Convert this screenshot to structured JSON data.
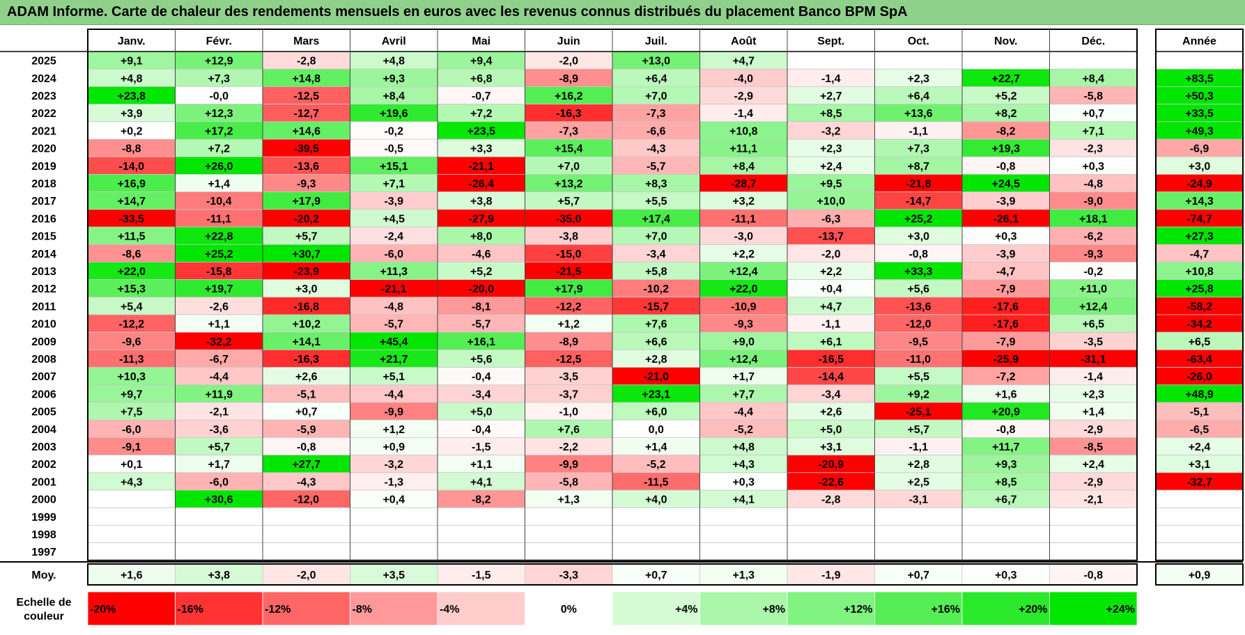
{
  "title": "ADAM Informe. Carte de chaleur des rendements mensuels en euros avec les revenus connus distribués du placement Banco BPM SpA",
  "chart_data": {
    "type": "heatmap",
    "title": "ADAM Informe. Carte de chaleur des rendements mensuels en euros avec les revenus connus distribués du placement Banco BPM SpA",
    "columns": [
      "Janv.",
      "Févr.",
      "Mars",
      "Avril",
      "Mai",
      "Juin",
      "Juil.",
      "Août",
      "Sept.",
      "Oct.",
      "Nov.",
      "Déc."
    ],
    "year_column_label": "Année",
    "years": [
      "2025",
      "2024",
      "2023",
      "2022",
      "2021",
      "2020",
      "2019",
      "2018",
      "2017",
      "2016",
      "2015",
      "2014",
      "2013",
      "2012",
      "2011",
      "2010",
      "2009",
      "2008",
      "2007",
      "2006",
      "2005",
      "2004",
      "2003",
      "2002",
      "2001",
      "2000",
      "1999",
      "1998",
      "1997"
    ],
    "values": [
      [
        "+9,1",
        "+12,9",
        "-2,8",
        "+4,8",
        "+9,4",
        "-2,0",
        "+13,0",
        "+4,7",
        "",
        "",
        "",
        ""
      ],
      [
        "+4,8",
        "+7,3",
        "+14,8",
        "+9,3",
        "+6,8",
        "-8,9",
        "+6,4",
        "-4,0",
        "-1,4",
        "+2,3",
        "+22,7",
        "+8,4"
      ],
      [
        "+23,8",
        "-0,0",
        "-12,5",
        "+8,4",
        "-0,7",
        "+16,2",
        "+7,0",
        "-2,9",
        "+2,7",
        "+6,4",
        "+5,2",
        "-5,8"
      ],
      [
        "+3,9",
        "+12,3",
        "-12,7",
        "+19,6",
        "+7,2",
        "-16,3",
        "-7,3",
        "-1,4",
        "+8,5",
        "+13,6",
        "+8,2",
        "+0,7"
      ],
      [
        "+0,2",
        "+17,2",
        "+14,6",
        "-0,2",
        "+23,5",
        "-7,3",
        "-6,6",
        "+10,8",
        "-3,2",
        "-1,1",
        "-8,2",
        "+7,1"
      ],
      [
        "-8,8",
        "+7,2",
        "-39,5",
        "-0,5",
        "+3,3",
        "+15,4",
        "-4,3",
        "+11,1",
        "+2,3",
        "+7,3",
        "+19,3",
        "-2,3"
      ],
      [
        "-14,0",
        "+26,0",
        "-13,6",
        "+15,1",
        "-21,1",
        "+7,0",
        "-5,7",
        "+8,4",
        "+2,4",
        "+8,7",
        "-0,8",
        "+0,3"
      ],
      [
        "+16,9",
        "+1,4",
        "-9,3",
        "+7,1",
        "-26,4",
        "+13,2",
        "+8,3",
        "-28,7",
        "+9,5",
        "-21,8",
        "+24,5",
        "-4,8"
      ],
      [
        "+14,7",
        "-10,4",
        "+17,9",
        "-3,9",
        "+3,8",
        "+5,7",
        "+5,5",
        "+3,2",
        "+10,0",
        "-14,7",
        "-3,9",
        "-9,0"
      ],
      [
        "-33,5",
        "-11,1",
        "-20,2",
        "+4,5",
        "-27,9",
        "-35,0",
        "+17,4",
        "-11,1",
        "-6,3",
        "+25,2",
        "-26,1",
        "+18,1"
      ],
      [
        "+11,5",
        "+22,8",
        "+5,7",
        "-2,4",
        "+8,0",
        "-3,8",
        "+7,0",
        "-3,0",
        "-13,7",
        "+3,0",
        "+0,3",
        "-6,2"
      ],
      [
        "-8,6",
        "+25,2",
        "+30,7",
        "-6,0",
        "-4,6",
        "-15,0",
        "-3,4",
        "+2,2",
        "-2,0",
        "-0,8",
        "-3,9",
        "-9,3"
      ],
      [
        "+22,0",
        "-15,8",
        "-23,9",
        "+11,3",
        "+5,2",
        "-21,5",
        "+5,8",
        "+12,4",
        "+2,2",
        "+33,3",
        "-4,7",
        "-0,2"
      ],
      [
        "+15,3",
        "+19,7",
        "+3,0",
        "-21,1",
        "-20,0",
        "+17,9",
        "-10,2",
        "+22,0",
        "+0,4",
        "+5,6",
        "-7,9",
        "+11,0"
      ],
      [
        "+5,4",
        "-2,6",
        "-16,8",
        "-4,8",
        "-8,1",
        "-12,2",
        "-15,7",
        "-10,9",
        "+4,7",
        "-13,6",
        "-17,6",
        "+12,4"
      ],
      [
        "-12,2",
        "+1,1",
        "+10,2",
        "-5,7",
        "-5,7",
        "+1,2",
        "+7,6",
        "-9,3",
        "-1,1",
        "-12,0",
        "-17,6",
        "+6,5"
      ],
      [
        "-9,6",
        "-32,2",
        "+14,1",
        "+45,4",
        "+16,1",
        "-8,9",
        "+6,6",
        "+9,0",
        "+6,1",
        "-9,5",
        "-7,9",
        "-3,5"
      ],
      [
        "-11,3",
        "-6,7",
        "-16,3",
        "+21,7",
        "+5,6",
        "-12,5",
        "+2,8",
        "+12,4",
        "-16,5",
        "-11,0",
        "-25,9",
        "-31,1"
      ],
      [
        "+10,3",
        "-4,4",
        "+2,6",
        "+5,1",
        "-0,4",
        "-3,5",
        "-21,0",
        "+1,7",
        "-14,4",
        "+5,5",
        "-7,2",
        "-1,4"
      ],
      [
        "+9,7",
        "+11,9",
        "-5,1",
        "-4,4",
        "-3,4",
        "-3,7",
        "+23,1",
        "+7,7",
        "-3,4",
        "+9,2",
        "+1,6",
        "+2,3"
      ],
      [
        "+7,5",
        "-2,1",
        "+0,7",
        "-9,9",
        "+5,0",
        "-1,0",
        "+6,0",
        "-4,4",
        "+2,6",
        "-25,1",
        "+20,9",
        "+1,4"
      ],
      [
        "-6,0",
        "-3,6",
        "-5,9",
        "+1,2",
        "-0,4",
        "+7,6",
        "0,0",
        "-5,2",
        "+5,0",
        "+5,7",
        "-0,8",
        "-2,9"
      ],
      [
        "-9,1",
        "+5,7",
        "-0,8",
        "+0,9",
        "-1,5",
        "-2,2",
        "+1,4",
        "+4,8",
        "+3,1",
        "-1,1",
        "+11,7",
        "-8,5"
      ],
      [
        "+0,1",
        "+1,7",
        "+27,7",
        "-3,2",
        "+1,1",
        "-9,9",
        "-5,2",
        "+4,3",
        "-20,9",
        "+2,8",
        "+9,3",
        "+2,4"
      ],
      [
        "+4,3",
        "-6,0",
        "-4,3",
        "-1,3",
        "+4,1",
        "-5,8",
        "-11,5",
        "+0,3",
        "-22,6",
        "+2,5",
        "+8,5",
        "-2,9"
      ],
      [
        "",
        "+30,6",
        "-12,0",
        "+0,4",
        "-8,2",
        "+1,3",
        "+4,0",
        "+4,1",
        "-2,8",
        "-3,1",
        "+6,7",
        "-2,1"
      ],
      [
        "",
        "",
        "",
        "",
        "",
        "",
        "",
        "",
        "",
        "",
        "",
        ""
      ],
      [
        "",
        "",
        "",
        "",
        "",
        "",
        "",
        "",
        "",
        "",
        "",
        ""
      ],
      [
        "",
        "",
        "",
        "",
        "",
        "",
        "",
        "",
        "",
        "",
        "",
        ""
      ]
    ],
    "annual": [
      "",
      "+83,5",
      "+50,3",
      "+33,5",
      "+49,3",
      "-6,9",
      "+3,0",
      "-24,9",
      "+14,3",
      "-74,7",
      "+27,3",
      "-4,7",
      "+10,8",
      "+25,8",
      "-58,2",
      "-34,2",
      "+6,5",
      "-63,4",
      "-26,0",
      "+48,9",
      "-5,1",
      "-6,5",
      "+2,4",
      "+3,1",
      "-32,7",
      "",
      "",
      "",
      ""
    ],
    "average_label": "Moy.",
    "average": [
      "+1,6",
      "+3,8",
      "-2,0",
      "+3,5",
      "-1,5",
      "-3,3",
      "+0,7",
      "+1,3",
      "-1,9",
      "+0,7",
      "+0,3",
      "-0,8"
    ],
    "average_annual": "+0,9",
    "scale_label": [
      "Echelle de",
      "couleur"
    ],
    "scale": [
      "-20%",
      "-16%",
      "-12%",
      "-8%",
      "-4%",
      "0%",
      "+4%",
      "+8%",
      "+12%",
      "+16%",
      "+20%",
      "+24%"
    ],
    "color_scale": {
      "negative_max": "#ff0000",
      "zero": "#ffffff",
      "positive_max": "#00e600",
      "range": [
        -20,
        24
      ]
    }
  }
}
